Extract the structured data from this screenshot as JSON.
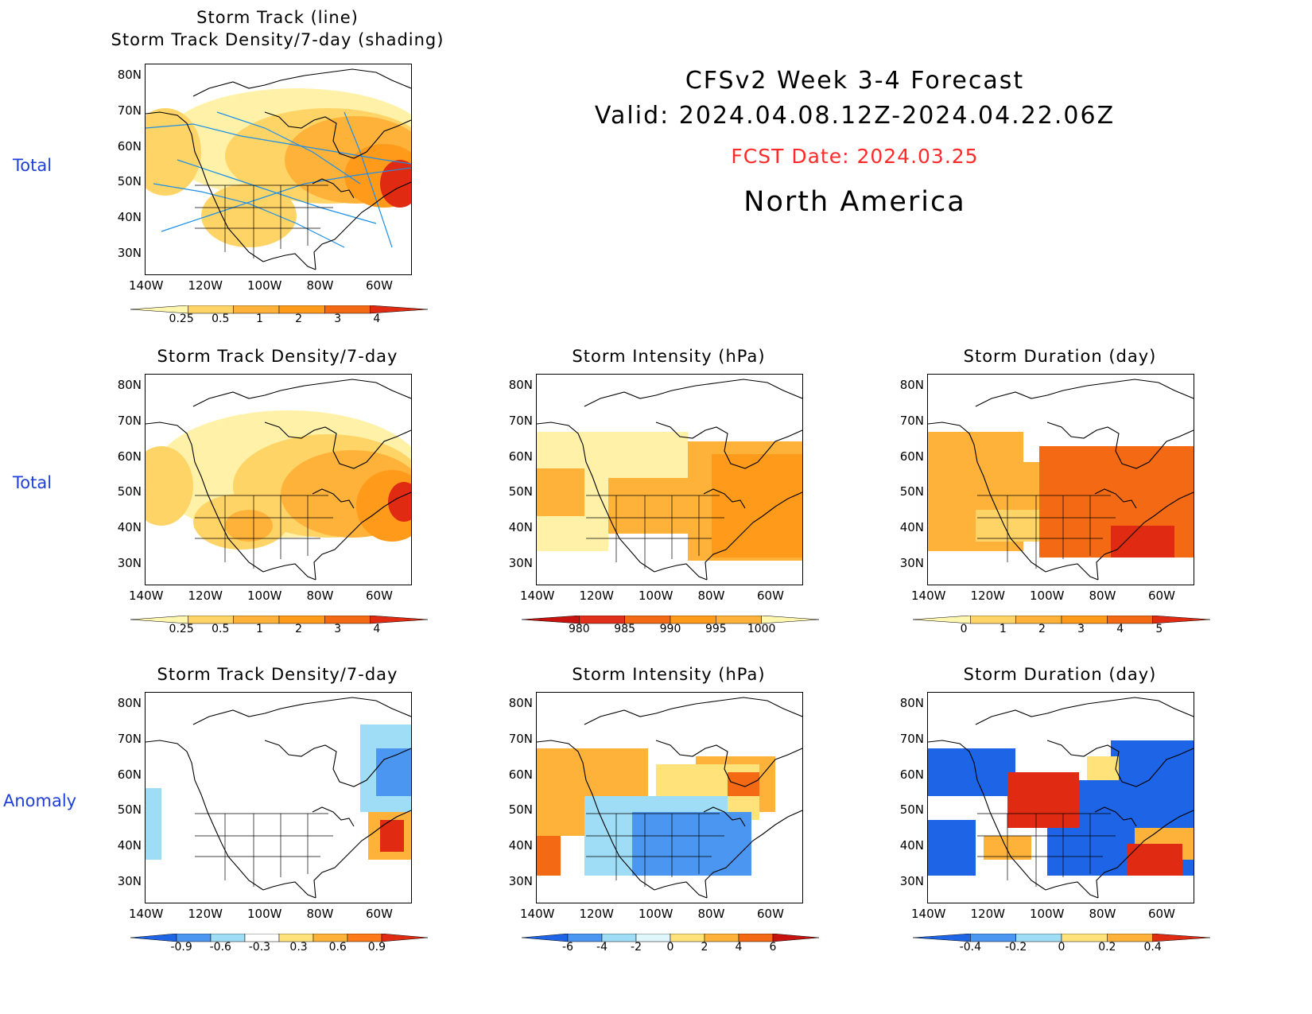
{
  "header": {
    "title": "CFSv2 Week 3-4 Forecast",
    "valid": "Valid: 2024.04.08.12Z-2024.04.22.06Z",
    "fcst_date": "FCST Date: 2024.03.25",
    "region": "North America",
    "fcst_color": "#ff2a2a"
  },
  "row_labels": [
    "Total",
    "Total",
    "Anomaly"
  ],
  "axes": {
    "lat_ticks": [
      "80N",
      "70N",
      "60N",
      "50N",
      "40N",
      "30N"
    ],
    "lon_ticks": [
      "140W",
      "120W",
      "100W",
      "80W",
      "60W"
    ]
  },
  "panels": [
    {
      "id": "track-total",
      "title1": "Storm Track (line)",
      "title2": "Storm Track Density/7-day (shading)",
      "colorbar": {
        "labels": [
          "0.25",
          "0.5",
          "1",
          "2",
          "3",
          "4"
        ],
        "colors": [
          "#fff6b0",
          "#ffd466",
          "#ffb23a",
          "#ff9a1a",
          "#f46a14",
          "#e02a12"
        ]
      }
    },
    {
      "id": "density-total",
      "title1": "Storm Track Density/7-day",
      "colorbar": {
        "labels": [
          "0.25",
          "0.5",
          "1",
          "2",
          "3",
          "4"
        ],
        "colors": [
          "#fff6b0",
          "#ffd466",
          "#ffb23a",
          "#ff9a1a",
          "#f46a14",
          "#e02a12"
        ]
      }
    },
    {
      "id": "intensity-total",
      "title1": "Storm Intensity (hPa)",
      "colorbar": {
        "labels": [
          "980",
          "985",
          "990",
          "995",
          "1000"
        ],
        "colors": [
          "#c8120e",
          "#e0301c",
          "#f46a14",
          "#ff9a1a",
          "#ffb23a",
          "#fff6b0"
        ]
      }
    },
    {
      "id": "duration-total",
      "title1": "Storm Duration (day)",
      "colorbar": {
        "labels": [
          "0",
          "1",
          "2",
          "3",
          "4",
          "5"
        ],
        "colors": [
          "#fff6b0",
          "#ffd466",
          "#ffb23a",
          "#ff9a1a",
          "#f46a14",
          "#e02a12"
        ]
      }
    },
    {
      "id": "density-anom",
      "title1": "Storm Track Density/7-day",
      "colorbar": {
        "labels": [
          "-0.9",
          "-0.6",
          "-0.3",
          "0.3",
          "0.6",
          "0.9"
        ],
        "colors": [
          "#1e64e6",
          "#4b96f0",
          "#9fdcf5",
          "#ffffff",
          "#ffe27a",
          "#ffb23a",
          "#ff7a1a",
          "#e02a12"
        ]
      }
    },
    {
      "id": "intensity-anom",
      "title1": "Storm Intensity (hPa)",
      "colorbar": {
        "labels": [
          "-6",
          "-4",
          "-2",
          "0",
          "2",
          "4",
          "6"
        ],
        "colors": [
          "#1e64e6",
          "#4b96f0",
          "#9fdcf5",
          "#dff6fb",
          "#ffe27a",
          "#ffb23a",
          "#f46a14",
          "#c8120e"
        ]
      }
    },
    {
      "id": "duration-anom",
      "title1": "Storm Duration (day)",
      "colorbar": {
        "labels": [
          "-0.4",
          "-0.2",
          "0",
          "0.2",
          "0.4"
        ],
        "colors": [
          "#1e64e6",
          "#4b96f0",
          "#9fdcf5",
          "#ffe27a",
          "#ffb23a",
          "#e02a12"
        ]
      }
    }
  ]
}
